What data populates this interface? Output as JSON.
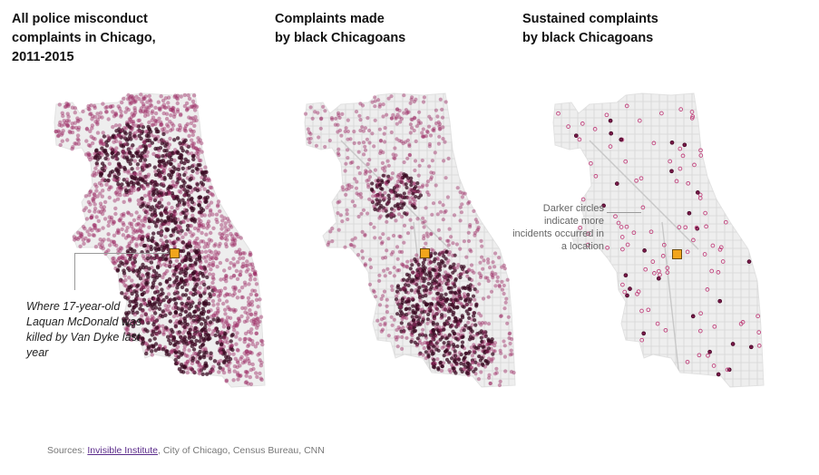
{
  "panels": [
    {
      "title": "All police misconduct\ncomplaints in Chicago,\n2011-2015"
    },
    {
      "title": "Complaints made\nby black Chicagoans"
    },
    {
      "title": "Sustained complaints\nby black Chicagoans"
    }
  ],
  "annotations": {
    "mcdonald": "Where 17-year-old\nLaquan McDonald was\nkilled by Van Dyke last\nyear",
    "darker_circles": "Darker circles\nindicate more\nincidents occurred in\na location"
  },
  "source": {
    "prefix": "Sources: ",
    "link_text": "Invisible Institute",
    "suffix": ", City of Chicago, Census Bureau, CNN"
  },
  "colors": {
    "dot": "#9b2a63",
    "dot_dark": "#3a0a22",
    "map_fill": "#eeeeee",
    "street": "#d6d6d6",
    "marker": "#f2a51c"
  }
}
